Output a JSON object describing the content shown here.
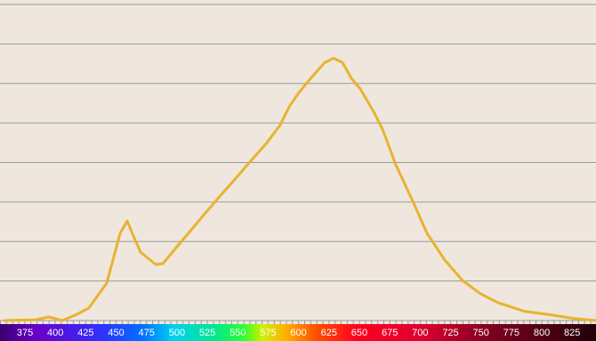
{
  "chart_data": {
    "type": "line",
    "x": [
      358.2,
      383.8,
      394.7,
      405.7,
      416.7,
      427.7,
      442.3,
      453.3,
      459.1,
      464.2,
      470.1,
      482.5,
      488.4,
      497.1,
      508.1,
      522.8,
      537.4,
      548.4,
      559.3,
      574.0,
      584.9,
      592.3,
      599.6,
      610.5,
      621.5,
      628.8,
      636.1,
      643.5,
      650.8,
      661.7,
      669.1,
      680.0,
      694.7,
      705.6,
      720.3,
      734.9,
      749.5,
      764.2,
      786.1,
      808.1,
      826.4,
      844.6
    ],
    "series": [
      {
        "color": "#e9b231",
        "values": [
          0,
          0.02,
          0.09,
          0,
          0.14,
          0.32,
          0.95,
          2.21,
          2.52,
          2.14,
          1.73,
          1.42,
          1.44,
          1.76,
          2.16,
          2.7,
          3.22,
          3.6,
          3.99,
          4.5,
          4.95,
          5.41,
          5.74,
          6.15,
          6.53,
          6.64,
          6.53,
          6.13,
          5.86,
          5.29,
          4.84,
          3.94,
          2.97,
          2.21,
          1.53,
          1.01,
          0.68,
          0.45,
          0.23,
          0.14,
          0.05,
          0
        ]
      }
    ],
    "xlim": [
      354.5,
      844.6
    ],
    "xticks": [
      375,
      400,
      425,
      450,
      475,
      500,
      525,
      550,
      575,
      600,
      625,
      650,
      675,
      700,
      725,
      750,
      775,
      800,
      825
    ],
    "ylim": [
      0,
      8
    ],
    "yticks": [
      0,
      1,
      2,
      3,
      4,
      5,
      6,
      7,
      8
    ],
    "grid": true
  }
}
